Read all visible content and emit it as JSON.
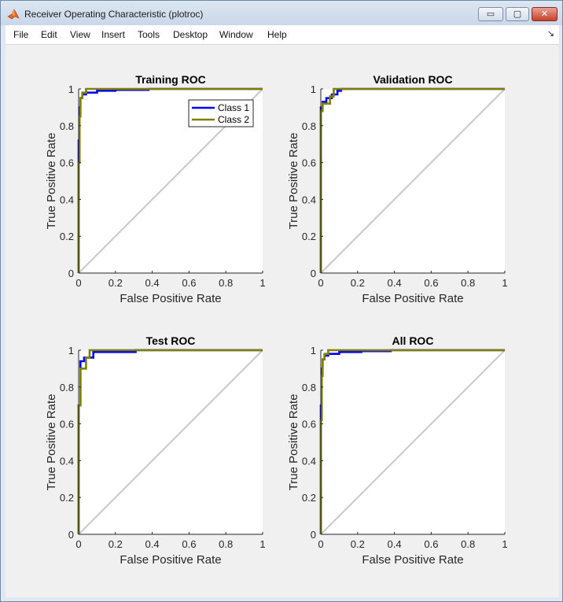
{
  "window": {
    "title": "Receiver Operating Characteristic (plotroc)",
    "controls": {
      "minimize": "▭",
      "maximize": "▢",
      "close": "✕"
    }
  },
  "menu": [
    "File",
    "Edit",
    "View",
    "Insert",
    "Tools",
    "Desktop",
    "Window",
    "Help"
  ],
  "menu_dock_icon": "↘",
  "colors": {
    "class1": "#0000ff",
    "class2": "#808000",
    "diagonal": "#c8c8c8",
    "figure_bg": "#f0f0f0"
  },
  "chart_data": [
    {
      "type": "line",
      "title": "Training ROC",
      "xlabel": "False Positive Rate",
      "ylabel": "True Positive Rate",
      "xlim": [
        0,
        1
      ],
      "ylim": [
        0,
        1
      ],
      "xticks": [
        "0",
        "0.2",
        "0.4",
        "0.6",
        "0.8",
        "1"
      ],
      "yticks": [
        "0",
        "0.2",
        "0.4",
        "0.6",
        "0.8",
        "1"
      ],
      "legend": {
        "placement": "top-right",
        "entries": [
          "Class 1",
          "Class 2"
        ]
      },
      "series": [
        {
          "name": "Class 1",
          "x": [
            0,
            0,
            0.005,
            0.005,
            0.01,
            0.01,
            0.02,
            0.02,
            0.04,
            0.04,
            0.1,
            0.1,
            0.2,
            0.2,
            0.38,
            0.38,
            1
          ],
          "y": [
            0,
            0.72,
            0.72,
            0.9,
            0.9,
            0.95,
            0.95,
            0.97,
            0.97,
            0.98,
            0.98,
            0.99,
            0.99,
            0.995,
            0.995,
            1,
            1
          ]
        },
        {
          "name": "Class 2",
          "x": [
            0,
            0,
            0.005,
            0.005,
            0.01,
            0.01,
            0.02,
            0.02,
            0.04,
            0.04,
            1
          ],
          "y": [
            0,
            0.6,
            0.6,
            0.85,
            0.85,
            0.95,
            0.95,
            0.98,
            0.98,
            1,
            1
          ]
        }
      ]
    },
    {
      "type": "line",
      "title": "Validation ROC",
      "xlabel": "False Positive Rate",
      "ylabel": "True Positive Rate",
      "xlim": [
        0,
        1
      ],
      "ylim": [
        0,
        1
      ],
      "xticks": [
        "0",
        "0.2",
        "0.4",
        "0.6",
        "0.8",
        "1"
      ],
      "yticks": [
        "0",
        "0.2",
        "0.4",
        "0.6",
        "0.8",
        "1"
      ],
      "series": [
        {
          "name": "Class 1",
          "x": [
            0,
            0,
            0.01,
            0.01,
            0.03,
            0.03,
            0.06,
            0.06,
            0.09,
            0.09,
            0.11,
            0.11,
            1
          ],
          "y": [
            0,
            0.9,
            0.9,
            0.93,
            0.93,
            0.95,
            0.95,
            0.97,
            0.97,
            0.99,
            0.99,
            1,
            1
          ]
        },
        {
          "name": "Class 2",
          "x": [
            0,
            0,
            0.01,
            0.01,
            0.05,
            0.05,
            0.07,
            0.07,
            1
          ],
          "y": [
            0,
            0.88,
            0.88,
            0.92,
            0.92,
            0.96,
            0.96,
            1,
            1
          ]
        }
      ]
    },
    {
      "type": "line",
      "title": "Test ROC",
      "xlabel": "False Positive Rate",
      "ylabel": "True Positive Rate",
      "xlim": [
        0,
        1
      ],
      "ylim": [
        0,
        1
      ],
      "xticks": [
        "0",
        "0.2",
        "0.4",
        "0.6",
        "0.8",
        "1"
      ],
      "yticks": [
        "0",
        "0.2",
        "0.4",
        "0.6",
        "0.8",
        "1"
      ],
      "series": [
        {
          "name": "Class 1",
          "x": [
            0,
            0,
            0.01,
            0.01,
            0.03,
            0.03,
            0.08,
            0.08,
            0.31,
            0.31,
            1
          ],
          "y": [
            0,
            0.7,
            0.7,
            0.94,
            0.94,
            0.96,
            0.96,
            0.99,
            0.99,
            1,
            1
          ]
        },
        {
          "name": "Class 2",
          "x": [
            0,
            0,
            0.01,
            0.01,
            0.04,
            0.04,
            0.06,
            0.06,
            1
          ],
          "y": [
            0,
            0.7,
            0.7,
            0.9,
            0.9,
            0.96,
            0.96,
            1,
            1
          ]
        }
      ]
    },
    {
      "type": "line",
      "title": "All ROC",
      "xlabel": "False Positive Rate",
      "ylabel": "True Positive Rate",
      "xlim": [
        0,
        1
      ],
      "ylim": [
        0,
        1
      ],
      "xticks": [
        "0",
        "0.2",
        "0.4",
        "0.6",
        "0.8",
        "1"
      ],
      "yticks": [
        "0",
        "0.2",
        "0.4",
        "0.6",
        "0.8",
        "1"
      ],
      "series": [
        {
          "name": "Class 1",
          "x": [
            0,
            0,
            0.005,
            0.005,
            0.01,
            0.01,
            0.02,
            0.02,
            0.04,
            0.04,
            0.1,
            0.1,
            0.22,
            0.22,
            0.38,
            0.38,
            1
          ],
          "y": [
            0,
            0.7,
            0.7,
            0.9,
            0.9,
            0.95,
            0.95,
            0.97,
            0.97,
            0.98,
            0.98,
            0.99,
            0.99,
            0.995,
            0.995,
            1,
            1
          ]
        },
        {
          "name": "Class 2",
          "x": [
            0,
            0,
            0.005,
            0.005,
            0.01,
            0.01,
            0.02,
            0.02,
            0.04,
            0.04,
            1
          ],
          "y": [
            0,
            0.62,
            0.62,
            0.86,
            0.86,
            0.95,
            0.95,
            0.98,
            0.98,
            1,
            1
          ]
        }
      ]
    }
  ]
}
